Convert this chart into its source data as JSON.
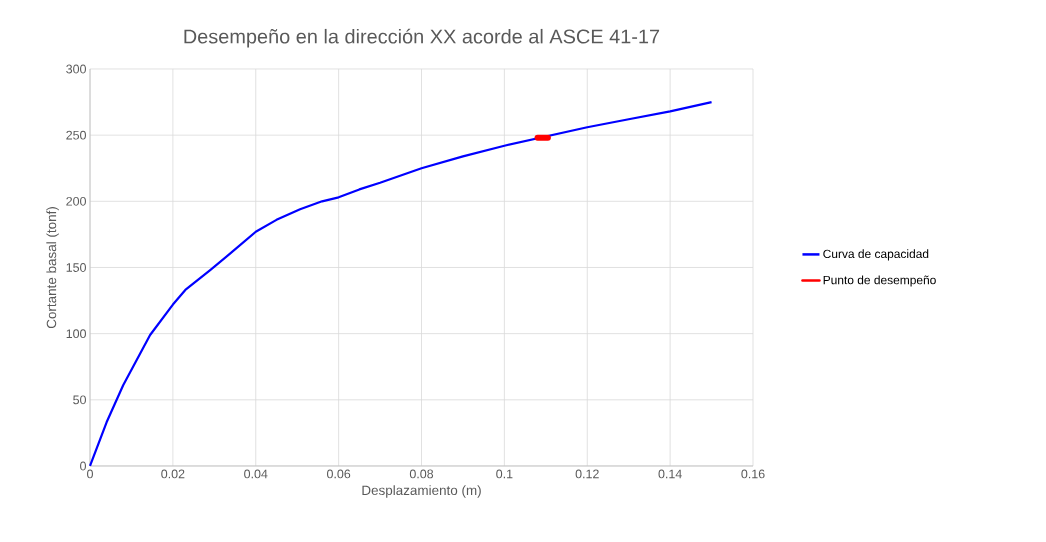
{
  "chart_data": {
    "type": "line",
    "title": "Desempeño en la dirección XX acorde al ASCE 41-17",
    "xlabel": "Desplazamiento (m)",
    "ylabel": "Cortante basal (tonf)",
    "series": [
      {
        "name": "Curva de capacidad",
        "color": "#0000ff",
        "x": [
          0,
          0.004,
          0.008,
          0.0145,
          0.02,
          0.023,
          0.029,
          0.034,
          0.04,
          0.045,
          0.0507,
          0.056,
          0.06,
          0.065,
          0.07,
          0.08,
          0.09,
          0.1,
          0.11,
          0.12,
          0.13,
          0.14,
          0.15
        ],
        "values": [
          0,
          33,
          61,
          99,
          122,
          133,
          148,
          161,
          177,
          186,
          194,
          200,
          203,
          209,
          214,
          225,
          234,
          242,
          null,
          256,
          262,
          268,
          275
        ]
      },
      {
        "name": "Punto de desempeño",
        "color": "#ff0000",
        "type": "line",
        "x": [
          0.108,
          0.1105
        ],
        "values": [
          248,
          248
        ]
      }
    ],
    "xlim": [
      0,
      0.16
    ],
    "ylim": [
      0,
      300
    ],
    "xticks": [
      0,
      0.02,
      0.04,
      0.06,
      0.08,
      0.1,
      0.12,
      0.14,
      0.16
    ],
    "yticks": [
      0,
      50,
      100,
      150,
      200,
      250,
      300
    ],
    "grid": true,
    "legend": "right",
    "marker": "none",
    "line_style": "solid"
  }
}
